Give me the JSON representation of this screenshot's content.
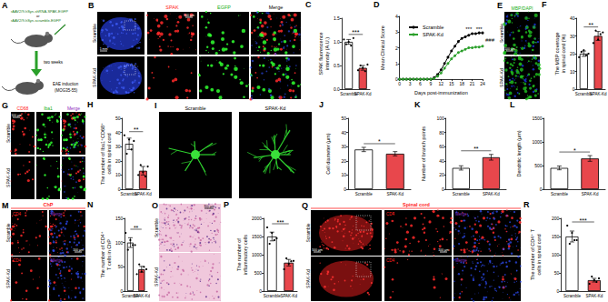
{
  "figure": {
    "A": {
      "label": "A",
      "texts": {
        "vector1": "rAAV2/9-hSyn-shRNA-SPAK-EGFP",
        "or": "or",
        "vector2": "rAAV2/9-hSyn-scramble-EGFP",
        "interval": "two weeks",
        "induction": "EAE induction",
        "antigen": "(MOG35-55)"
      }
    },
    "B": {
      "label": "B",
      "rows": [
        "Scramble",
        "SPAK-Kd"
      ],
      "columns": [
        {
          "text": "SPAK",
          "color": "#ff2020"
        },
        {
          "text": "EGFP",
          "color": "#20b020"
        },
        {
          "text": "Merge",
          "color": "#000000"
        }
      ],
      "scale_bars": [
        "1 mm",
        "100 μm"
      ]
    },
    "E": {
      "label": "E",
      "header": {
        "text": "MBP/DAPI",
        "color": "#20b020"
      },
      "rows": [
        "Scramble",
        "SPAK-Kd"
      ],
      "scale_bars": [
        "100 μm"
      ]
    },
    "G": {
      "label": "G",
      "rows": [
        "Scramble",
        "SPAK-Kd"
      ],
      "columns": [
        {
          "text": "CD68",
          "color": "#ff2020"
        },
        {
          "text": "Iba1",
          "color": "#20b020"
        },
        {
          "text": "Merge",
          "color": "#9030c0"
        }
      ],
      "scale_bars": [
        "100 μm"
      ]
    },
    "I": {
      "label": "I",
      "columns": [
        "Scramble",
        "SPAK-Kd"
      ]
    },
    "M": {
      "label": "M",
      "header": {
        "text": "ChP",
        "color": "#ff2020"
      },
      "rows": [
        "Scramble",
        "SPAK-Kd"
      ],
      "columns": [
        {
          "text": "CD4",
          "color": "#ff2020"
        },
        {
          "text": "Merge",
          "color": "#9030c0"
        }
      ],
      "scale_bars": [
        "100 μm"
      ]
    },
    "O": {
      "label": "O",
      "rows": [
        "Scramble",
        "SPAK-Kd"
      ],
      "scale_bars": [
        "100 μm"
      ]
    },
    "Q": {
      "label": "Q",
      "header": {
        "text": "Spinal cord",
        "color": "#ff2020"
      },
      "rows": [
        "Scramble",
        "SPAK-Kd"
      ],
      "columns": [
        {
          "text": "CD4",
          "color": "#ff2020"
        },
        {
          "text": "Merge",
          "color": "#9030c0"
        }
      ],
      "scale_bars": [
        "500 μm",
        "100 μm"
      ]
    }
  },
  "chart_data": [
    {
      "panel": "C",
      "type": "bar",
      "ylabel": "SPAK fluorescence intensity (A.U.)",
      "categories": [
        "Scramble",
        "SPAK-Kd"
      ],
      "values": [
        1.0,
        0.45
      ],
      "errors": [
        0.05,
        0.05
      ],
      "points": [
        [
          1.05,
          0.95,
          1.0,
          0.92,
          1.08
        ],
        [
          0.4,
          0.5,
          0.45,
          0.38,
          0.52
        ]
      ],
      "colors": [
        "#ffffff",
        "#e8474c"
      ],
      "ylim": [
        0,
        1.5
      ],
      "yticks": [
        {
          "value": 0,
          "label": "0.0"
        },
        {
          "value": 0.5,
          "label": "0.5"
        },
        {
          "value": 1,
          "label": "1.0"
        },
        {
          "value": 1.5,
          "label": "1.5"
        }
      ],
      "significance": "***",
      "grid": false
    },
    {
      "panel": "D",
      "type": "line",
      "ylabel": "Mean Clinical Score",
      "xlabel": "Days post-immunization",
      "x": [
        0,
        1,
        2,
        3,
        4,
        5,
        6,
        7,
        8,
        9,
        10,
        11,
        12,
        13,
        14,
        15,
        16,
        17,
        18,
        19,
        20,
        21,
        22,
        23,
        24
      ],
      "series": [
        {
          "name": "Scramble",
          "color": "#000000",
          "marker": "circle",
          "line_style": "solid",
          "values": [
            0,
            0,
            0,
            0,
            0,
            0,
            0,
            0,
            0,
            0,
            0.1,
            0.3,
            0.6,
            1.0,
            1.4,
            1.8,
            2.1,
            2.4,
            2.6,
            2.7,
            2.8,
            2.9,
            2.9,
            2.95,
            2.95
          ]
        },
        {
          "name": "SPAK-Kd",
          "color": "#2ca02c",
          "marker": "circle",
          "line_style": "solid",
          "values": [
            0,
            0,
            0,
            0,
            0,
            0,
            0,
            0,
            0,
            0,
            0.05,
            0.2,
            0.4,
            0.7,
            1.0,
            1.3,
            1.5,
            1.7,
            1.8,
            1.9,
            2.0,
            2.0,
            2.05,
            2.05,
            2.1
          ]
        }
      ],
      "xlim": [
        0,
        24
      ],
      "xticks": [
        0,
        3,
        6,
        9,
        12,
        15,
        18,
        21,
        24
      ],
      "ylim": [
        0,
        4
      ],
      "yticks": [
        0,
        1,
        2,
        3,
        4
      ],
      "legend": "top-left",
      "grid": false,
      "annotations": [
        {
          "text": "***",
          "x": 20,
          "y": 3.2
        },
        {
          "text": "***",
          "x": 23,
          "y": 3.2
        },
        {
          "text": "###",
          "x": 24,
          "y": 2.5
        }
      ]
    },
    {
      "panel": "F",
      "type": "bar",
      "ylabel": "The MBP coverage in spinal cord (%)",
      "categories": [
        "Scramble",
        "SPAK-Kd"
      ],
      "values": [
        20,
        30
      ],
      "errors": [
        1.5,
        2.5
      ],
      "points": [
        [
          18,
          21,
          22,
          19,
          20
        ],
        [
          26,
          33,
          28,
          31,
          32
        ]
      ],
      "colors": [
        "#ffffff",
        "#e8474c"
      ],
      "ylim": [
        0,
        40
      ],
      "yticks": [
        0,
        10,
        20,
        30,
        40
      ],
      "significance": "**",
      "grid": false
    },
    {
      "panel": "H",
      "type": "bar",
      "ylabel": "The number of Iba1⁺CD68⁺ cells in spinal cord",
      "categories": [
        "Scramble",
        "SPAK-Kd"
      ],
      "values": [
        32,
        13
      ],
      "errors": [
        4,
        3
      ],
      "points": [
        [
          38,
          25,
          35,
          28,
          34
        ],
        [
          10,
          17,
          12,
          9,
          16
        ]
      ],
      "colors": [
        "#ffffff",
        "#e8474c"
      ],
      "ylim": [
        0,
        50
      ],
      "yticks": [
        0,
        10,
        20,
        30,
        40,
        50
      ],
      "significance": "**",
      "grid": false
    },
    {
      "panel": "J",
      "type": "bar",
      "ylabel": "Cell diameter (μm)",
      "categories": [
        "Scramble",
        "SPAK-Kd"
      ],
      "values": [
        28,
        25
      ],
      "errors": [
        1.5,
        1.5
      ],
      "colors": [
        "#ffffff",
        "#e8474c"
      ],
      "ylim": [
        0,
        50
      ],
      "yticks": [
        0,
        10,
        20,
        30,
        40,
        50
      ],
      "significance": "*",
      "grid": false
    },
    {
      "panel": "K",
      "type": "bar",
      "ylabel": "Number of branch points",
      "categories": [
        "Scramble",
        "SPAK-Kd"
      ],
      "values": [
        30,
        45
      ],
      "errors": [
        3,
        4
      ],
      "colors": [
        "#ffffff",
        "#e8474c"
      ],
      "ylim": [
        0,
        100
      ],
      "yticks": [
        0,
        20,
        40,
        60,
        80,
        100
      ],
      "significance": "**",
      "grid": false
    },
    {
      "panel": "L",
      "type": "bar",
      "ylabel": "Dendritic length (μm)",
      "categories": [
        "Scramble",
        "SPAK-Kd"
      ],
      "values": [
        450,
        650
      ],
      "errors": [
        40,
        60
      ],
      "colors": [
        "#ffffff",
        "#e8474c"
      ],
      "ylim": [
        0,
        1500
      ],
      "yticks": [
        0,
        500,
        1000,
        1500
      ],
      "significance": "*",
      "grid": false
    },
    {
      "panel": "N",
      "type": "bar",
      "ylabel": "The number of CD4⁺ T cells in ChP",
      "categories": [
        "Scramble",
        "SPAK-Kd"
      ],
      "values": [
        100,
        45
      ],
      "errors": [
        10,
        6
      ],
      "points": [
        [
          120,
          85,
          105,
          95,
          95
        ],
        [
          35,
          55,
          40,
          50,
          45
        ]
      ],
      "colors": [
        "#ffffff",
        "#e8474c"
      ],
      "ylim": [
        0,
        150
      ],
      "yticks": [
        0,
        50,
        100,
        150
      ],
      "significance": "**",
      "grid": false
    },
    {
      "panel": "P",
      "type": "bar",
      "ylabel": "The number of inflammatory cells",
      "categories": [
        "Scramble",
        "SPAK-Kd"
      ],
      "values": [
        1500,
        780
      ],
      "errors": [
        120,
        90
      ],
      "points": [
        [
          1750,
          1300,
          1600,
          1400,
          1450
        ],
        [
          600,
          900,
          750,
          820,
          830
        ]
      ],
      "colors": [
        "#ffffff",
        "#e8474c"
      ],
      "ylim": [
        0,
        2000
      ],
      "yticks": [
        0,
        500,
        1000,
        1500,
        2000
      ],
      "significance": "***",
      "grid": false
    },
    {
      "panel": "R",
      "type": "bar",
      "ylabel": "The number of CD4⁺ T cells in spinal cord",
      "categories": [
        "Scramble",
        "SPAK-Kd"
      ],
      "values": [
        150,
        30
      ],
      "errors": [
        15,
        5
      ],
      "points": [
        [
          180,
          130,
          160,
          140,
          140
        ],
        [
          20,
          40,
          30,
          25,
          35
        ]
      ],
      "colors": [
        "#ffffff",
        "#e8474c"
      ],
      "ylim": [
        0,
        200
      ],
      "yticks": [
        0,
        50,
        100,
        150,
        200
      ],
      "significance": "***",
      "grid": false
    }
  ]
}
